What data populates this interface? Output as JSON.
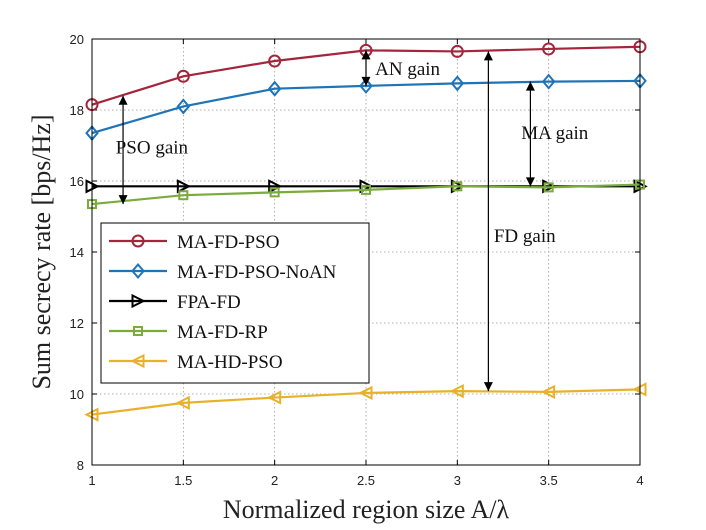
{
  "chart_data": {
    "type": "line",
    "title": "",
    "xlabel": "Normalized region size A/λ",
    "ylabel": "Sum secrecy rate [bps/Hz]",
    "xlim": [
      1,
      4
    ],
    "ylim": [
      8,
      20
    ],
    "x": [
      1,
      1.5,
      2,
      2.5,
      3,
      3.5,
      4
    ],
    "x_ticks": [
      "1",
      "1.5",
      "2",
      "2.5",
      "3",
      "3.5",
      "4"
    ],
    "y_ticks": [
      "8",
      "10",
      "12",
      "14",
      "16",
      "18",
      "20"
    ],
    "grid": true,
    "legend_position": "center-left",
    "series": [
      {
        "name": "MA-FD-PSO",
        "color": "#a3263d",
        "marker": "circle",
        "values": [
          18.15,
          18.95,
          19.38,
          19.68,
          19.65,
          19.72,
          19.78
        ]
      },
      {
        "name": "MA-FD-PSO-NoAN",
        "color": "#1f74b8",
        "marker": "diamond",
        "values": [
          17.35,
          18.1,
          18.6,
          18.68,
          18.75,
          18.8,
          18.82
        ]
      },
      {
        "name": "FPA-FD",
        "color": "#000000",
        "marker": "triangle-right",
        "values": [
          15.85,
          15.85,
          15.85,
          15.85,
          15.85,
          15.85,
          15.85
        ]
      },
      {
        "name": "MA-FD-RP",
        "color": "#7aab3c",
        "marker": "square",
        "values": [
          15.35,
          15.6,
          15.68,
          15.75,
          15.85,
          15.82,
          15.9
        ]
      },
      {
        "name": "MA-HD-PSO",
        "color": "#e8b12a",
        "marker": "triangle-left",
        "values": [
          9.42,
          9.75,
          9.9,
          10.03,
          10.08,
          10.06,
          10.13
        ]
      }
    ],
    "annotations": [
      {
        "text": "AN gain",
        "x": 2.5,
        "y_from": 18.68,
        "y_to": 19.68,
        "label_x": 2.55,
        "label_y": 19.15
      },
      {
        "text": "PSO gain",
        "x": 1.17,
        "y_from": 15.35,
        "y_to": 18.4,
        "label_x": 1.13,
        "label_y": 16.95
      },
      {
        "text": "MA gain",
        "x": 3.4,
        "y_from": 15.85,
        "y_to": 18.8,
        "label_x": 3.35,
        "label_y": 17.35
      },
      {
        "text": "FD gain",
        "x": 3.17,
        "y_from": 10.08,
        "y_to": 19.65,
        "label_x": 3.2,
        "label_y": 14.45
      }
    ]
  }
}
